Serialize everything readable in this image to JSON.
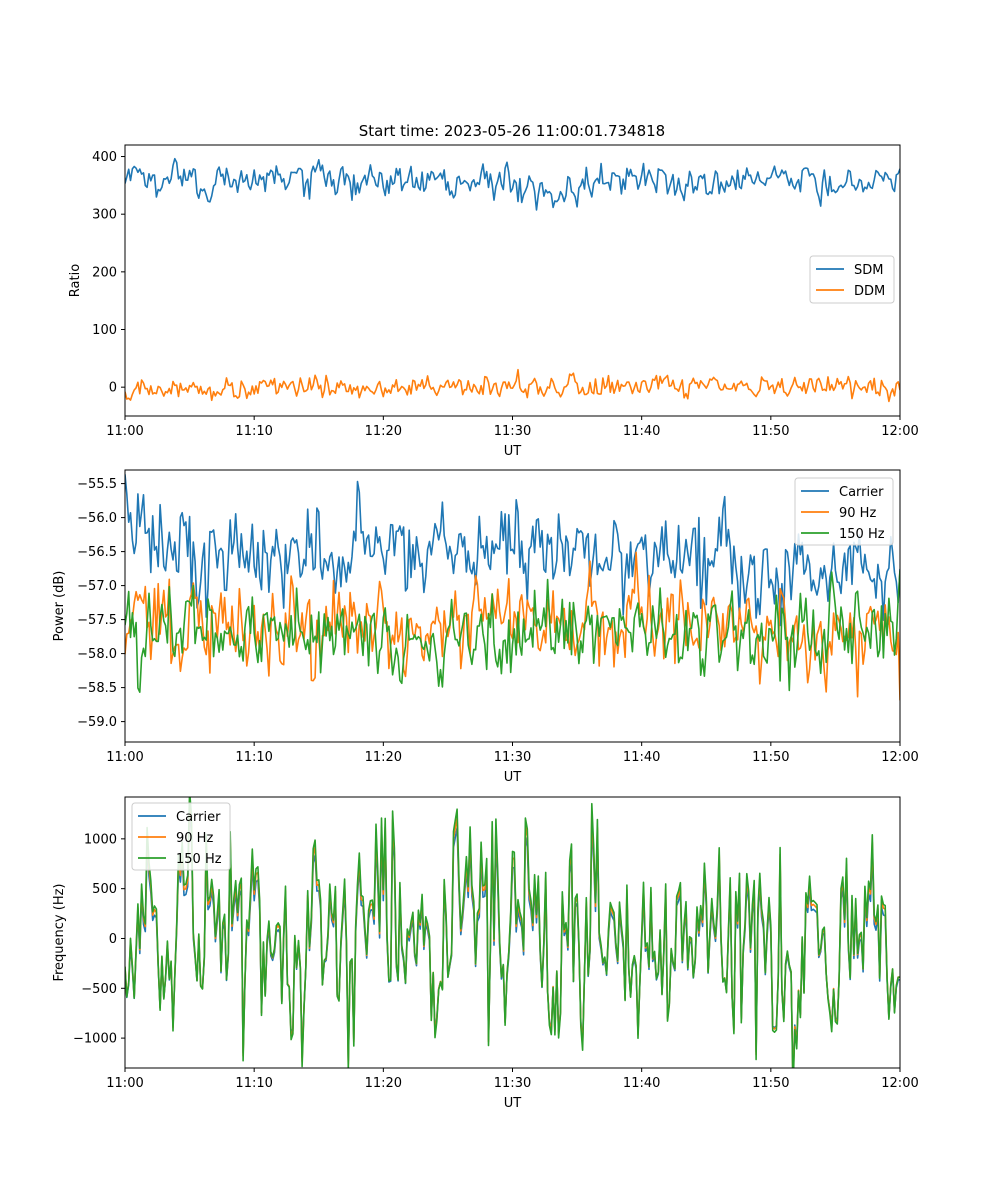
{
  "figure": {
    "title": "Start time: 2023-05-26 11:00:01.734818"
  },
  "colors": {
    "blue": "#1f77b4",
    "orange": "#ff7f0e",
    "green": "#2ca02c"
  },
  "chart_data": [
    {
      "type": "line",
      "title": "Start time: 2023-05-26 11:00:01.734818",
      "xlabel": "UT",
      "ylabel": "Ratio",
      "x_range": [
        "11:00",
        "12:00"
      ],
      "x_ticks": [
        "11:00",
        "11:10",
        "11:20",
        "11:30",
        "11:40",
        "11:50",
        "12:00"
      ],
      "ylim": [
        -50,
        420
      ],
      "y_ticks": [
        0,
        100,
        200,
        300,
        400
      ],
      "grid": false,
      "legend_position": "center-right",
      "series": [
        {
          "name": "SDM",
          "color": "#1f77b4",
          "x": [
            "11:00",
            "11:05",
            "11:10",
            "11:15",
            "11:20",
            "11:25",
            "11:30",
            "11:33",
            "11:35",
            "11:40",
            "11:45",
            "11:50",
            "11:55",
            "12:00"
          ],
          "values": [
            360,
            358,
            362,
            355,
            357,
            360,
            356,
            330,
            358,
            362,
            355,
            360,
            357,
            362
          ]
        },
        {
          "name": "DDM",
          "color": "#ff7f0e",
          "x": [
            "11:00",
            "11:05",
            "11:10",
            "11:15",
            "11:20",
            "11:25",
            "11:30",
            "11:35",
            "11:40",
            "11:45",
            "11:50",
            "11:55",
            "12:00"
          ],
          "values": [
            -5,
            -8,
            2,
            0,
            3,
            -6,
            2,
            -1,
            4,
            0,
            -3,
            -2,
            1
          ]
        }
      ]
    },
    {
      "type": "line",
      "title": "",
      "xlabel": "UT",
      "ylabel": "Power (dB)",
      "x_range": [
        "11:00",
        "12:00"
      ],
      "x_ticks": [
        "11:00",
        "11:10",
        "11:20",
        "11:30",
        "11:40",
        "11:50",
        "12:00"
      ],
      "ylim": [
        -59.3,
        -55.3
      ],
      "y_ticks": [
        -59.0,
        -58.5,
        -58.0,
        -57.5,
        -57.0,
        -56.5,
        -56.0,
        -55.5
      ],
      "y_tick_labels": [
        "−59.0",
        "−58.5",
        "−58.0",
        "−57.5",
        "−57.0",
        "−56.5",
        "−56.0",
        "−55.5"
      ],
      "grid": false,
      "legend_position": "upper-right",
      "series": [
        {
          "name": "Carrier",
          "color": "#1f77b4",
          "x": [
            "11:00",
            "11:05",
            "11:10",
            "11:15",
            "11:20",
            "11:25",
            "11:30",
            "11:35",
            "11:40",
            "11:45",
            "11:50",
            "11:55",
            "12:00"
          ],
          "values": [
            -56.2,
            -56.5,
            -56.6,
            -56.5,
            -56.4,
            -56.5,
            -56.5,
            -56.4,
            -56.6,
            -56.5,
            -56.8,
            -56.7,
            -56.6
          ]
        },
        {
          "name": "90 Hz",
          "color": "#ff7f0e",
          "x": [
            "11:00",
            "11:05",
            "11:10",
            "11:15",
            "11:20",
            "11:25",
            "11:30",
            "11:35",
            "11:40",
            "11:45",
            "11:50",
            "11:55",
            "12:00"
          ],
          "values": [
            -57.4,
            -57.5,
            -57.6,
            -57.6,
            -57.6,
            -57.7,
            -57.5,
            -57.6,
            -57.6,
            -57.5,
            -57.6,
            -57.7,
            -57.5
          ]
        },
        {
          "name": "150 Hz",
          "color": "#2ca02c",
          "x": [
            "11:00",
            "11:05",
            "11:10",
            "11:15",
            "11:20",
            "11:25",
            "11:30",
            "11:35",
            "11:40",
            "11:45",
            "11:50",
            "11:55",
            "12:00"
          ],
          "values": [
            -57.6,
            -57.6,
            -57.7,
            -57.7,
            -57.8,
            -57.8,
            -57.6,
            -57.6,
            -57.6,
            -57.7,
            -57.8,
            -57.8,
            -57.6
          ]
        }
      ]
    },
    {
      "type": "line",
      "title": "",
      "xlabel": "UT",
      "ylabel": "Frequency (Hz)",
      "x_range": [
        "11:00",
        "12:00"
      ],
      "x_ticks": [
        "11:00",
        "11:10",
        "11:20",
        "11:30",
        "11:40",
        "11:50",
        "12:00"
      ],
      "ylim": [
        -1300,
        1420
      ],
      "y_ticks": [
        -1000,
        -500,
        0,
        500,
        1000
      ],
      "y_tick_labels": [
        "−1000",
        "−500",
        "0",
        "500",
        "1000"
      ],
      "grid": false,
      "legend_position": "upper-left",
      "series": [
        {
          "name": "Carrier",
          "color": "#1f77b4",
          "x": [
            "11:00",
            "11:05",
            "11:10",
            "11:15",
            "11:20",
            "11:25",
            "11:30",
            "11:35",
            "11:40",
            "11:45",
            "11:50",
            "11:54",
            "11:58",
            "12:00"
          ],
          "values": [
            -50,
            0,
            -30,
            0,
            -40,
            0,
            -50,
            0,
            -40,
            0,
            -30,
            0,
            -60,
            -50
          ]
        },
        {
          "name": "90 Hz",
          "color": "#ff7f0e",
          "x": [
            "11:00",
            "11:05",
            "11:10",
            "11:15",
            "11:20",
            "11:25",
            "11:30",
            "11:35",
            "11:40",
            "11:45",
            "11:50",
            "11:54",
            "11:58",
            "12:00"
          ],
          "values": [
            0,
            30,
            10,
            30,
            0,
            30,
            0,
            30,
            0,
            30,
            10,
            30,
            -10,
            0
          ]
        },
        {
          "name": "150 Hz",
          "color": "#2ca02c",
          "x": [
            "11:00",
            "11:05",
            "11:10",
            "11:15",
            "11:20",
            "11:25",
            "11:30",
            "11:35",
            "11:40",
            "11:45",
            "11:50",
            "11:54",
            "11:58",
            "12:00"
          ],
          "values": [
            20,
            50,
            30,
            50,
            20,
            50,
            20,
            50,
            20,
            50,
            30,
            50,
            10,
            20
          ]
        }
      ]
    }
  ]
}
